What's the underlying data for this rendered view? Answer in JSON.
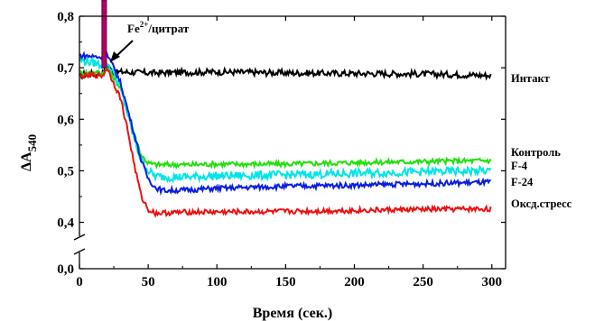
{
  "chart_data": {
    "type": "line",
    "title": "",
    "xlabel": "Время (сек.)",
    "ylabel": "ΔA",
    "ylabel_subscript": "540",
    "xlim": [
      0,
      310
    ],
    "ylim_upper": [
      0.38,
      0.8
    ],
    "ylim_lower": [
      0.0,
      0.05
    ],
    "axis_break": true,
    "grid": false,
    "legend": "series names written at right end of each line",
    "x_ticks": [
      "0",
      "50",
      "100",
      "150",
      "200",
      "250",
      "300"
    ],
    "y_ticks": [
      "0,0",
      "0,4",
      "0,5",
      "0,6",
      "0,7",
      "0,8"
    ],
    "annotation": {
      "text_base": "Fe",
      "text_sup": "2+",
      "text_rest": "/цитрат",
      "x": 20,
      "y": 0.71,
      "spike_x": 18,
      "spike_color": "#c0004a"
    },
    "series": [
      {
        "name": "Интакт",
        "color": "#000000",
        "x": [
          0,
          10,
          17,
          20,
          25,
          30,
          50,
          100,
          150,
          200,
          250,
          300
        ],
        "y": [
          0.686,
          0.688,
          0.688,
          0.705,
          0.69,
          0.692,
          0.69,
          0.692,
          0.69,
          0.689,
          0.688,
          0.685
        ]
      },
      {
        "name": "Контроль",
        "color": "#22e00c",
        "x": [
          0,
          10,
          17,
          20,
          25,
          30,
          35,
          40,
          45,
          50,
          55,
          60,
          80,
          100,
          150,
          200,
          250,
          300
        ],
        "y": [
          0.69,
          0.69,
          0.69,
          0.7,
          0.68,
          0.66,
          0.62,
          0.57,
          0.53,
          0.515,
          0.512,
          0.512,
          0.512,
          0.513,
          0.513,
          0.516,
          0.518,
          0.52
        ]
      },
      {
        "name": "F-4",
        "color": "#00e5e5",
        "x": [
          0,
          10,
          17,
          20,
          25,
          30,
          35,
          40,
          45,
          50,
          55,
          60,
          80,
          100,
          150,
          200,
          250,
          300
        ],
        "y": [
          0.715,
          0.71,
          0.705,
          0.71,
          0.69,
          0.66,
          0.61,
          0.56,
          0.52,
          0.5,
          0.49,
          0.488,
          0.488,
          0.49,
          0.492,
          0.495,
          0.498,
          0.5
        ]
      },
      {
        "name": "F-24",
        "color": "#0a1ee0",
        "x": [
          0,
          10,
          17,
          20,
          25,
          30,
          35,
          40,
          45,
          50,
          55,
          60,
          70,
          80,
          100,
          150,
          200,
          250,
          300
        ],
        "y": [
          0.724,
          0.722,
          0.72,
          0.725,
          0.7,
          0.67,
          0.62,
          0.57,
          0.52,
          0.485,
          0.468,
          0.462,
          0.462,
          0.463,
          0.466,
          0.47,
          0.472,
          0.475,
          0.478
        ]
      },
      {
        "name": "Оксд.стресс",
        "color": "#ee1010",
        "x": [
          0,
          10,
          17,
          20,
          25,
          30,
          35,
          40,
          45,
          50,
          55,
          60,
          80,
          100,
          150,
          200,
          250,
          300
        ],
        "y": [
          0.684,
          0.685,
          0.685,
          0.7,
          0.67,
          0.64,
          0.58,
          0.51,
          0.45,
          0.425,
          0.418,
          0.418,
          0.42,
          0.42,
          0.421,
          0.423,
          0.425,
          0.426
        ]
      }
    ]
  }
}
